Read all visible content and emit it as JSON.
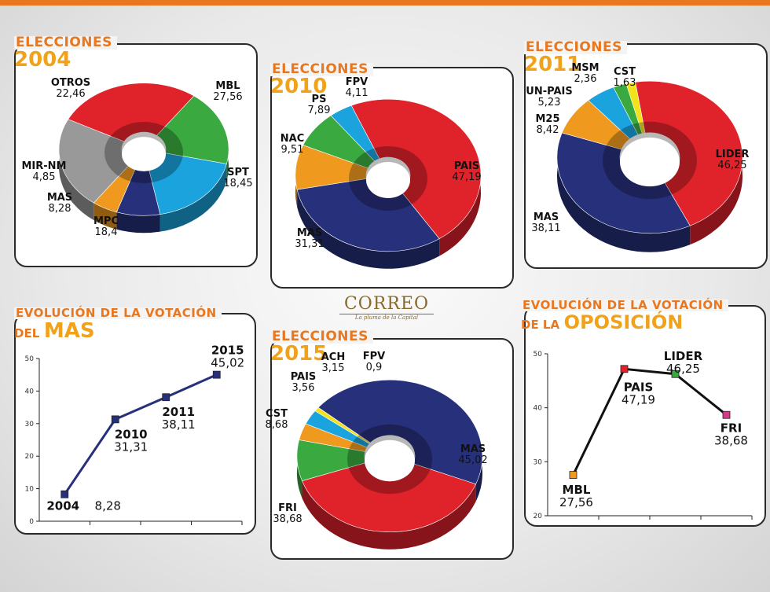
{
  "logo": {
    "name": "CORREO",
    "tagline": "La pluma de la Capital"
  },
  "chart_data": [
    {
      "id": "pie2004",
      "type": "pie",
      "title_small": "ELECCIONES",
      "title_big": "2004",
      "slices": [
        {
          "name": "MBL",
          "value": 27.56,
          "label": "27,56",
          "color": "#e0222b"
        },
        {
          "name": "SPT",
          "value": 18.45,
          "label": "18,45",
          "color": "#3aa93f"
        },
        {
          "name": "MPC",
          "value": 18.4,
          "label": "18,4",
          "color": "#1aa3dd"
        },
        {
          "name": "MAS",
          "value": 8.28,
          "label": "8,28",
          "color": "#27307a"
        },
        {
          "name": "MIR-NM",
          "value": 4.85,
          "label": "4,85",
          "color": "#ef9a1e"
        },
        {
          "name": "OTROS",
          "value": 22.46,
          "label": "22,46",
          "color": "#999999"
        }
      ]
    },
    {
      "id": "pie2010",
      "type": "pie",
      "title_small": "ELECCIONES",
      "title_big": "2010",
      "slices": [
        {
          "name": "PAIS",
          "value": 47.19,
          "label": "47,19",
          "color": "#e0222b"
        },
        {
          "name": "MAS",
          "value": 31.31,
          "label": "31,31",
          "color": "#27307a"
        },
        {
          "name": "NAC",
          "value": 9.51,
          "label": "9,51",
          "color": "#ef9a1e"
        },
        {
          "name": "PS",
          "value": 7.89,
          "label": "7,89",
          "color": "#3aa93f"
        },
        {
          "name": "FPV",
          "value": 4.11,
          "label": "4,11",
          "color": "#1aa3dd"
        }
      ]
    },
    {
      "id": "pie2011",
      "type": "pie",
      "title_small": "ELECCIONES",
      "title_big": "2011",
      "slices": [
        {
          "name": "LIDER",
          "value": 46.25,
          "label": "46,25",
          "color": "#e0222b"
        },
        {
          "name": "MAS",
          "value": 38.11,
          "label": "38,11",
          "color": "#27307a"
        },
        {
          "name": "M25",
          "value": 8.42,
          "label": "8,42",
          "color": "#ef9a1e"
        },
        {
          "name": "UN-PAIS",
          "value": 5.23,
          "label": "5,23",
          "color": "#1aa3dd"
        },
        {
          "name": "MSM",
          "value": 2.36,
          "label": "2,36",
          "color": "#3aa93f"
        },
        {
          "name": "CST",
          "value": 1.63,
          "label": "1,63",
          "color": "#f2e21a"
        }
      ]
    },
    {
      "id": "pie2015",
      "type": "pie",
      "title_small": "ELECCIONES",
      "title_big": "2015",
      "slices": [
        {
          "name": "MAS",
          "value": 45.02,
          "label": "45,02",
          "color": "#27307a"
        },
        {
          "name": "FRI",
          "value": 38.68,
          "label": "38,68",
          "color": "#e0222b"
        },
        {
          "name": "CST",
          "value": 8.68,
          "label": "8,68",
          "color": "#3aa93f"
        },
        {
          "name": "PAIS",
          "value": 3.56,
          "label": "3,56",
          "color": "#ef9a1e"
        },
        {
          "name": "ACH",
          "value": 3.15,
          "label": "3,15",
          "color": "#1aa3dd"
        },
        {
          "name": "FPV",
          "value": 0.9,
          "label": "0,9",
          "color": "#f2e21a"
        }
      ]
    },
    {
      "id": "lineMAS",
      "type": "line",
      "title_small": "EVOLUCIÓN DE LA VOTACIÓN",
      "title_pre": "DEL",
      "title_big": "MAS",
      "ylim": [
        0,
        50
      ],
      "yticks": [
        "0",
        "10",
        "20",
        "30",
        "40",
        "50"
      ],
      "color": "#27307a",
      "points": [
        {
          "year": "2004",
          "value": 8.28,
          "label": "8,28"
        },
        {
          "year": "2010",
          "value": 31.31,
          "label": "31,31"
        },
        {
          "year": "2011",
          "value": 38.11,
          "label": "38,11"
        },
        {
          "year": "2015",
          "value": 45.02,
          "label": "45,02"
        }
      ]
    },
    {
      "id": "lineOPO",
      "type": "line",
      "title_small": "EVOLUCIÓN DE LA VOTACIÓN",
      "title_pre": "DE LA",
      "title_big": "OPOSICIÓN",
      "ylim": [
        20,
        50
      ],
      "yticks": [
        "20",
        "30",
        "40",
        "50"
      ],
      "color": "#111111",
      "points": [
        {
          "party": "MBL",
          "value": 27.56,
          "label": "27,56",
          "color": "#ef9a1e"
        },
        {
          "party": "PAIS",
          "value": 47.19,
          "label": "47,19",
          "color": "#e0222b"
        },
        {
          "party": "LIDER",
          "value": 46.25,
          "label": "46,25",
          "color": "#3aa93f"
        },
        {
          "party": "FRI",
          "value": 38.68,
          "label": "38,68",
          "color": "#d8388c"
        }
      ]
    }
  ]
}
